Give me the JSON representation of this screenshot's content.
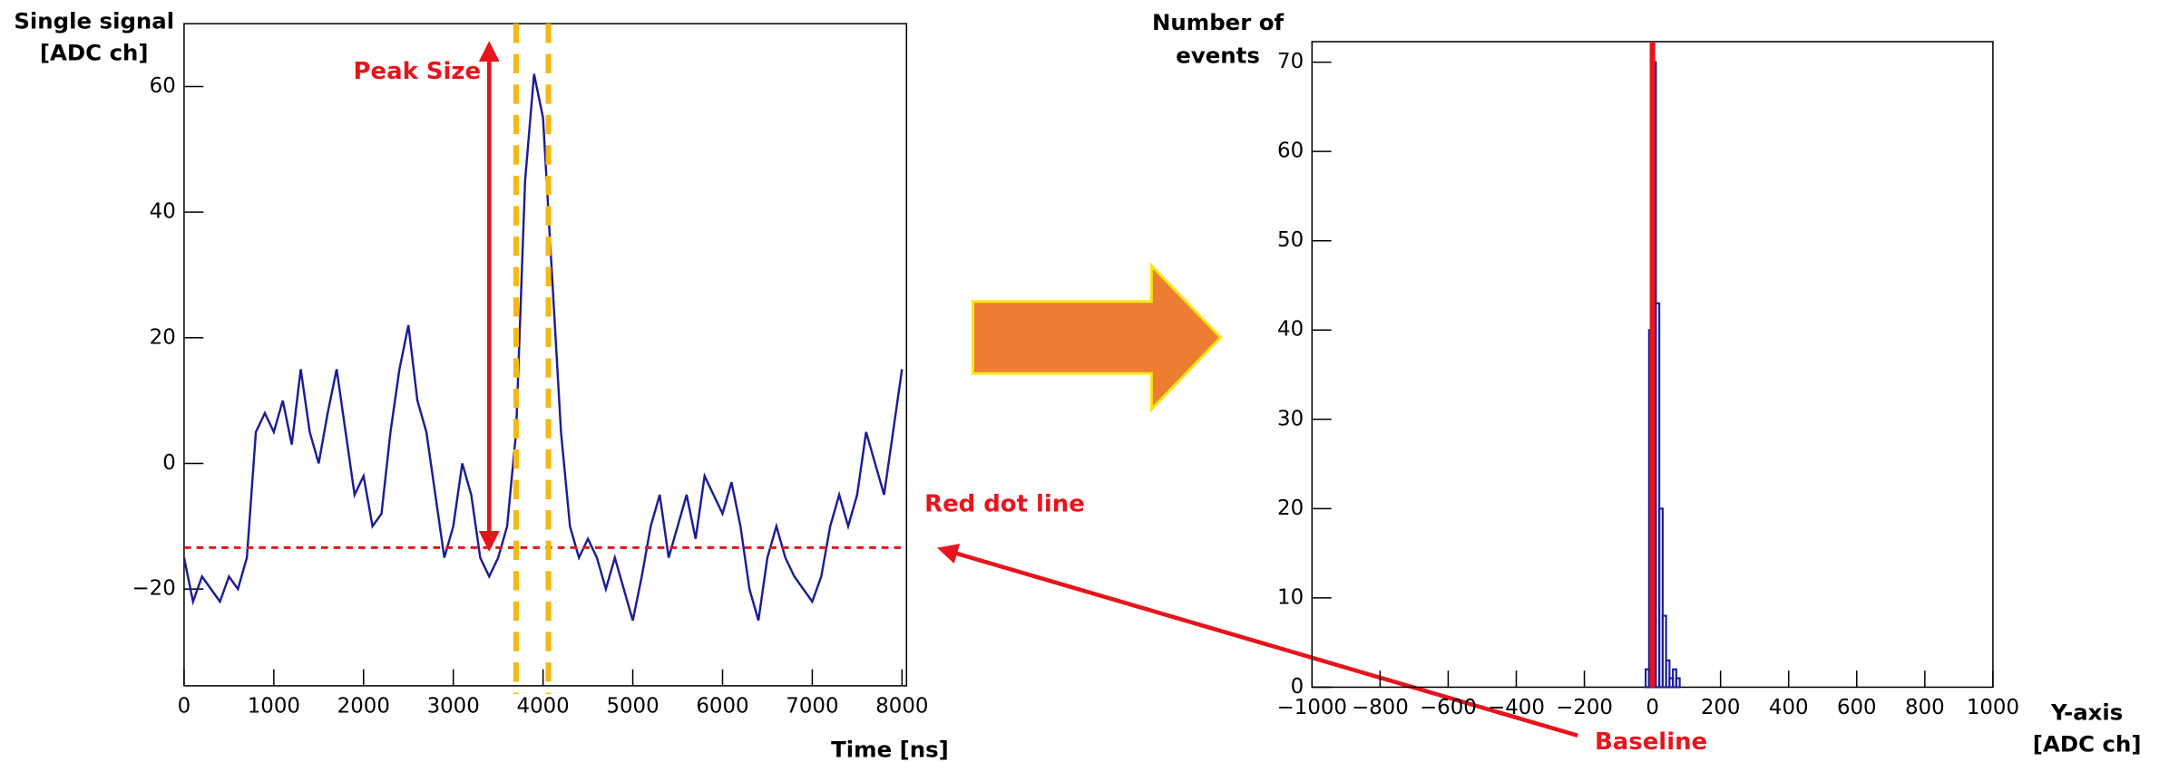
{
  "chart_data": [
    {
      "type": "line",
      "ylabel": [
        "Single signal",
        "[ADC ch]"
      ],
      "xlabel": "Time [ns]",
      "color": "#1c1c96",
      "x": [
        0,
        100,
        200,
        300,
        400,
        500,
        600,
        700,
        800,
        900,
        1000,
        1100,
        1200,
        1300,
        1400,
        1500,
        1600,
        1700,
        1800,
        1900,
        2000,
        2100,
        2200,
        2300,
        2400,
        2500,
        2600,
        2700,
        2800,
        2900,
        3000,
        3100,
        3200,
        3300,
        3400,
        3500,
        3600,
        3700,
        3800,
        3900,
        4000,
        4100,
        4200,
        4300,
        4400,
        4500,
        4600,
        4700,
        4800,
        4900,
        5000,
        5100,
        5200,
        5300,
        5400,
        5500,
        5600,
        5700,
        5800,
        5900,
        6000,
        6100,
        6200,
        6300,
        6400,
        6500,
        6600,
        6700,
        6800,
        6900,
        7000,
        7100,
        7200,
        7300,
        7400,
        7500,
        7600,
        7700,
        7800,
        7900,
        8000
      ],
      "values": [
        -15,
        -22,
        -18,
        -20,
        -22,
        -18,
        -20,
        -15,
        5,
        8,
        5,
        10,
        3,
        15,
        5,
        0,
        8,
        15,
        5,
        -5,
        -2,
        -10,
        -8,
        5,
        15,
        22,
        10,
        5,
        -5,
        -15,
        -10,
        0,
        -5,
        -15,
        -18,
        -15,
        -10,
        5,
        45,
        62,
        55,
        30,
        5,
        -10,
        -15,
        -12,
        -15,
        -20,
        -15,
        -20,
        -25,
        -18,
        -10,
        -5,
        -15,
        -10,
        -5,
        -12,
        -2,
        -5,
        -8,
        -3,
        -10,
        -20,
        -25,
        -15,
        -10,
        -15,
        -18,
        -20,
        -22,
        -18,
        -10,
        -5,
        -10,
        -5,
        5,
        0,
        -5,
        5,
        15
      ],
      "xlim": [
        0,
        8050
      ],
      "ylim": [
        -35.4,
        70
      ],
      "xticks": [
        0,
        1000,
        2000,
        3000,
        4000,
        5000,
        6000,
        7000,
        8000
      ],
      "yticks": [
        {
          "value": -20,
          "label": "−20"
        },
        0,
        20,
        40,
        60
      ],
      "reference_line": {
        "value": -13.4,
        "label": "Red dot line",
        "color": "#e8141c"
      },
      "window": [
        3700,
        4060
      ],
      "window_color": "#f5b914",
      "peak_arrow": {
        "x": 3400,
        "y": [
          -13.4,
          66.6
        ],
        "label": "Peak Size"
      }
    },
    {
      "type": "histogram",
      "ylabel": [
        "Number of",
        "events"
      ],
      "xlabel": [
        "Y-axis",
        "[ADC ch]"
      ],
      "color": "#1c1c96",
      "bins": [
        -20,
        -10,
        0,
        10,
        20,
        30,
        40,
        50,
        60,
        70,
        80
      ],
      "counts": [
        2,
        40,
        70,
        43,
        20,
        8,
        3,
        1,
        2,
        1
      ],
      "xlim": [
        -1000,
        1000
      ],
      "ylim": [
        0,
        72.3
      ],
      "xticks": [
        {
          "value": -1000,
          "label": "−1000"
        },
        {
          "value": -800,
          "label": "−800"
        },
        {
          "value": -600,
          "label": "−600"
        },
        {
          "value": -400,
          "label": "−400"
        },
        {
          "value": -200,
          "label": "−200"
        },
        0,
        200,
        400,
        600,
        800,
        1000
      ],
      "yticks": [
        0,
        10,
        20,
        30,
        40,
        50,
        60,
        70
      ],
      "baseline": {
        "value": 0,
        "label": "Baseline",
        "color": "#e8141c"
      }
    }
  ]
}
